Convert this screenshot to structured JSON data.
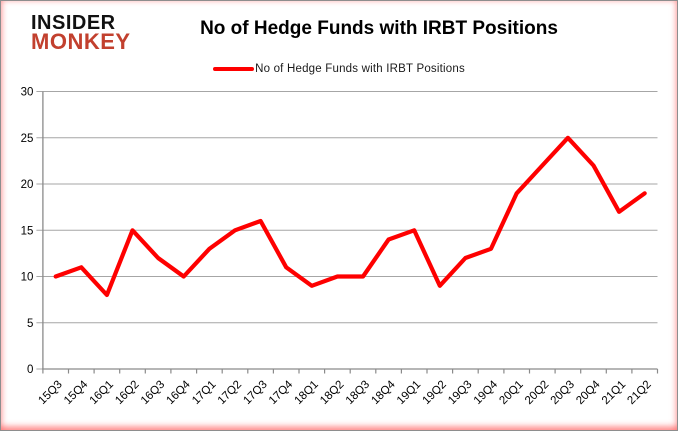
{
  "brand": {
    "line1": "INSIDER",
    "line2": "MONKEY",
    "line1_color": "#111111",
    "line2_color": "#c2402e"
  },
  "header": {
    "title": "No of Hedge Funds with IRBT Positions"
  },
  "legend": {
    "label": "No of Hedge Funds with IRBT Positions",
    "marker_color": "#fe0000"
  },
  "chart_data": {
    "type": "line",
    "title": "No of Hedge Funds with IRBT Positions",
    "categories": [
      "15Q3",
      "15Q4",
      "16Q1",
      "16Q2",
      "16Q3",
      "16Q4",
      "17Q1",
      "17Q2",
      "17Q3",
      "17Q4",
      "18Q1",
      "18Q2",
      "18Q3",
      "18Q4",
      "19Q1",
      "19Q2",
      "19Q3",
      "19Q4",
      "20Q1",
      "20Q2",
      "20Q3",
      "20Q4",
      "21Q1",
      "21Q2"
    ],
    "series": [
      {
        "name": "No of Hedge Funds with IRBT Positions",
        "color": "#fe0000",
        "values": [
          10,
          11,
          8,
          15,
          12,
          10,
          13,
          15,
          16,
          11,
          9,
          10,
          10,
          14,
          15,
          9,
          12,
          13,
          19,
          22,
          25,
          22,
          17,
          19
        ]
      }
    ],
    "xlabel": "",
    "ylabel": "",
    "ylim": [
      0,
      30
    ],
    "yticks": [
      0,
      5,
      10,
      15,
      20,
      25,
      30
    ],
    "grid": true,
    "legend_position": "top-center",
    "gridline_color": "#a6a6a6",
    "axis_color": "#8a8a8a",
    "label_color": "#000000"
  }
}
